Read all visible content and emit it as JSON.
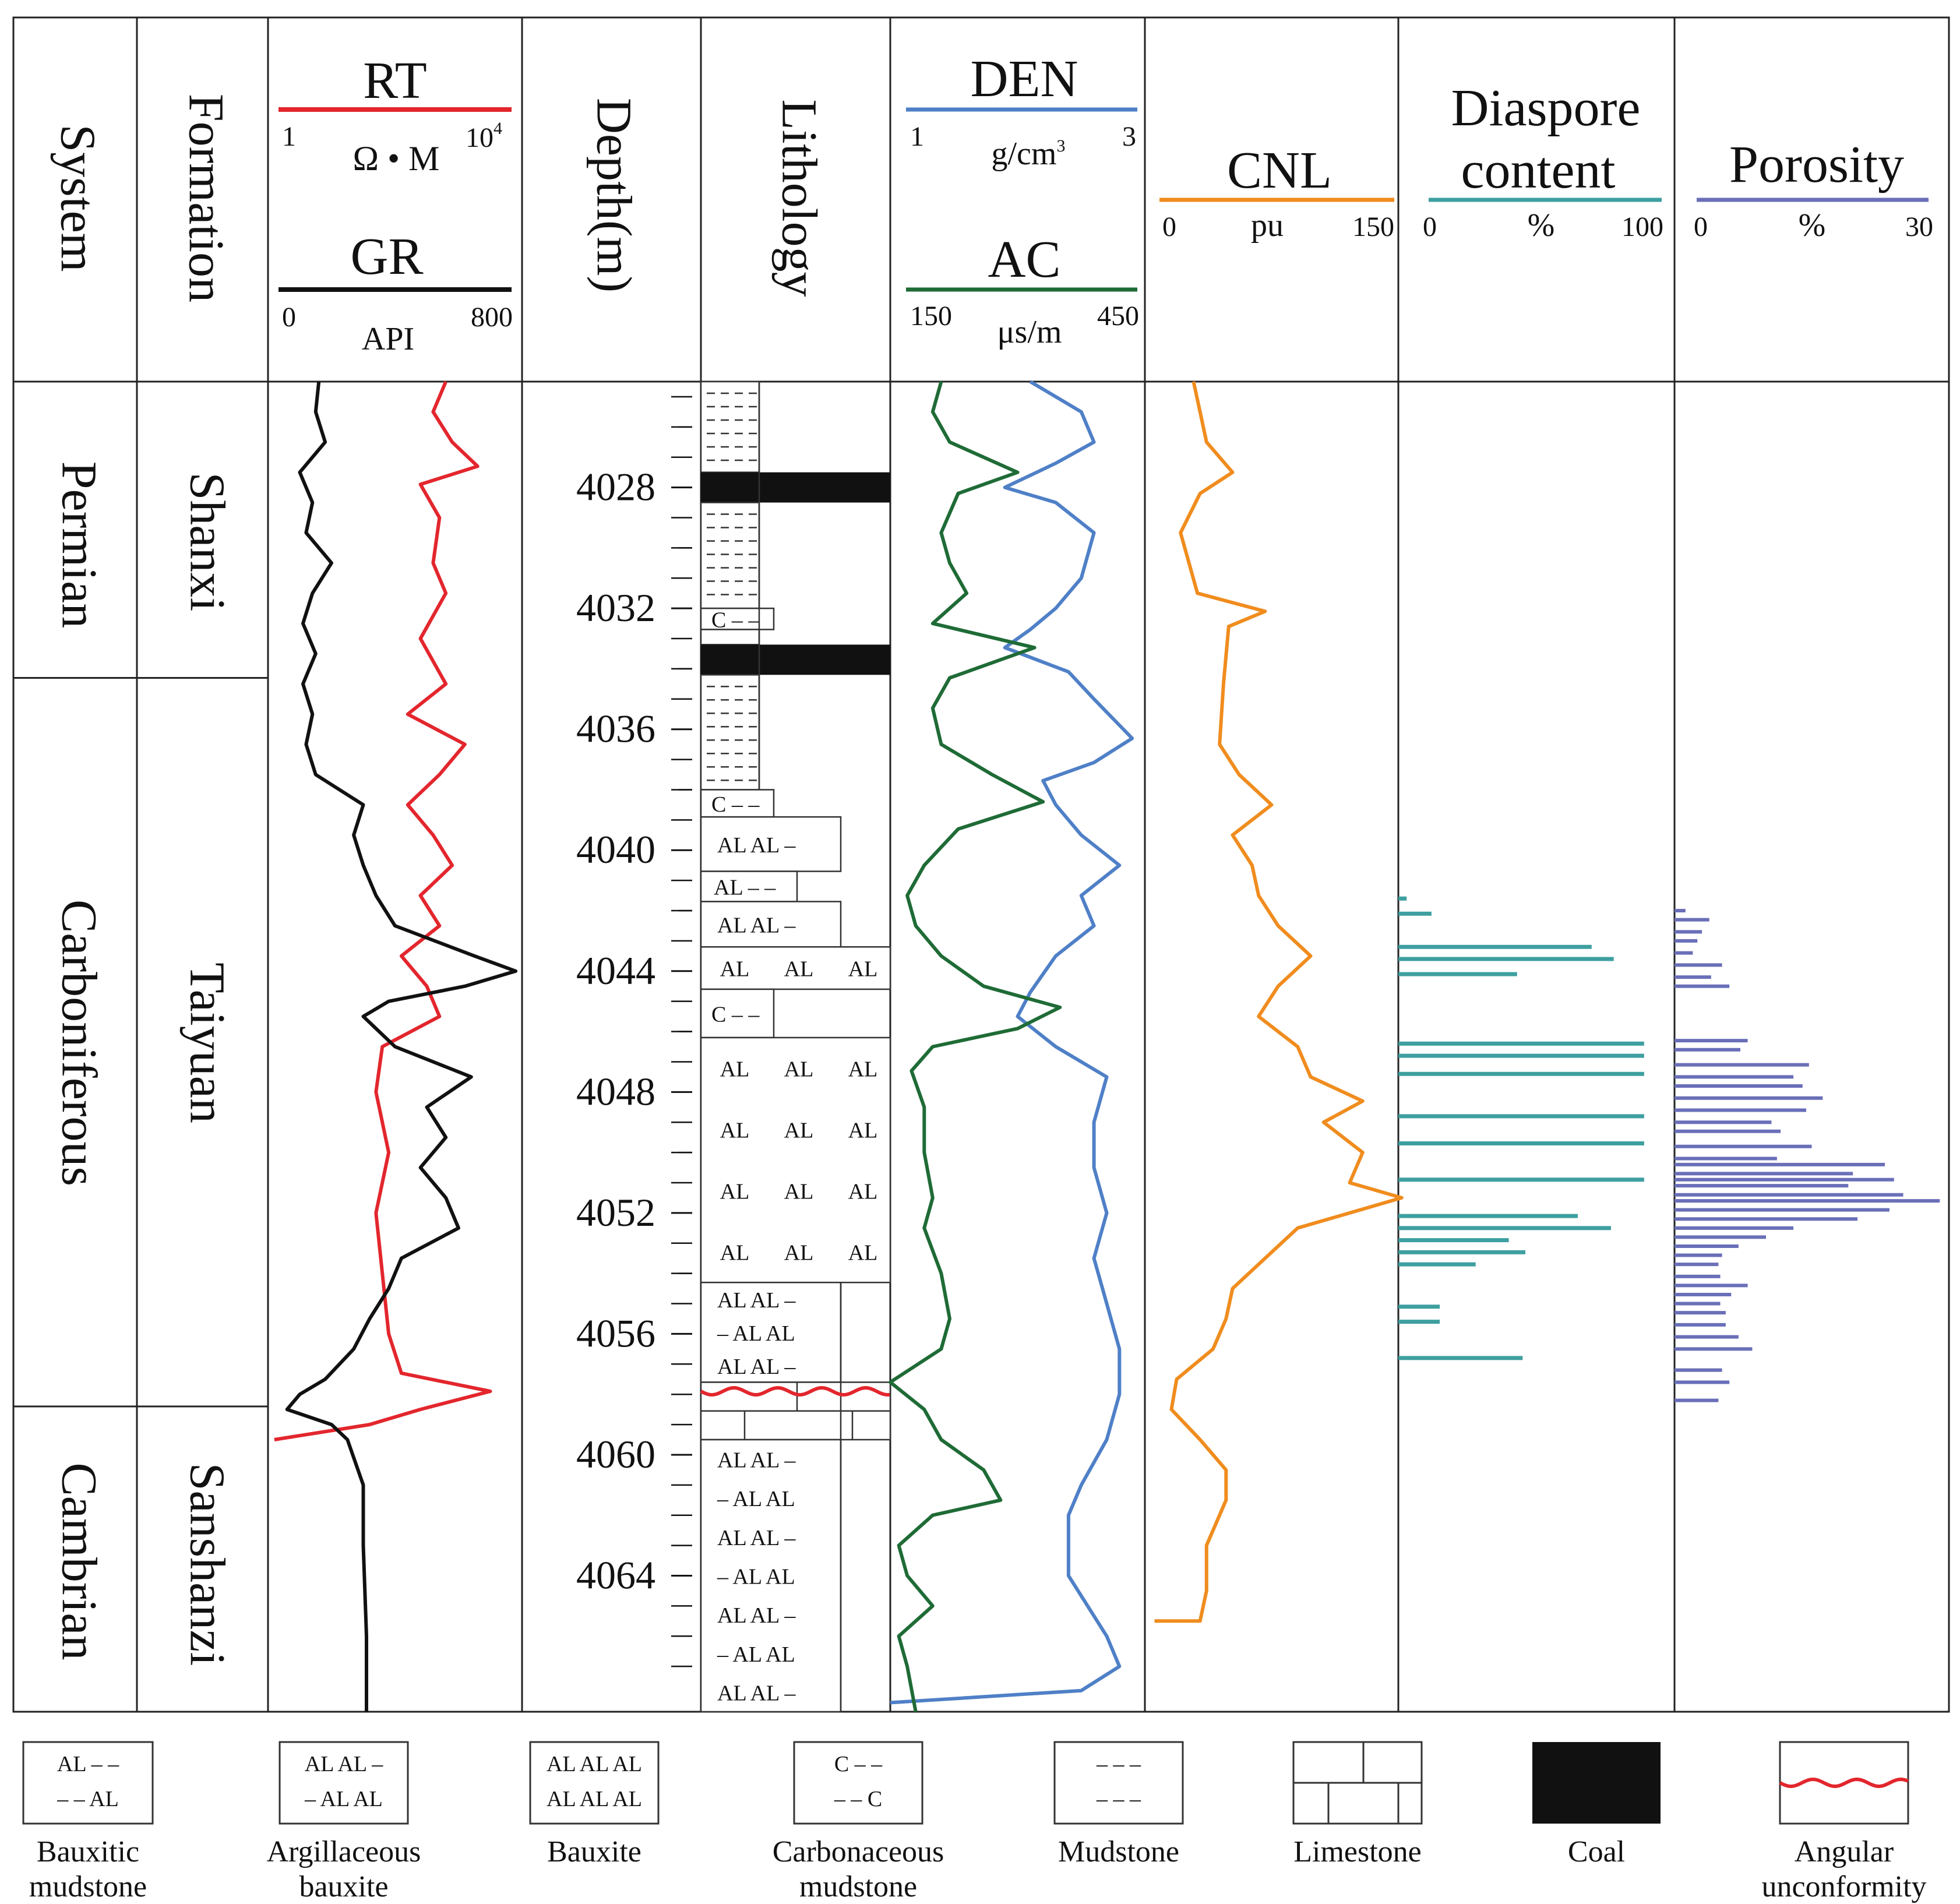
{
  "colors": {
    "rt": "#e3262d",
    "gr": "#111111",
    "den": "#4f80c7",
    "ac": "#1f6b36",
    "cnl": "#f08c1e",
    "diaspore": "#3e9fa0",
    "porosity": "#6a6fb8",
    "unconformity": "#e3262d",
    "coal": "#111111"
  },
  "columns": {
    "system": "System",
    "formation": "Formation",
    "depth": "Depth(m)",
    "lithology": "Lithology"
  },
  "curves": {
    "rt": {
      "name": "RT",
      "min": "1",
      "max": "10",
      "max_exp": "4",
      "unit": "Ω • M"
    },
    "gr": {
      "name": "GR",
      "min": "0",
      "max": "800",
      "unit": "API"
    },
    "den": {
      "name": "DEN",
      "min": "1",
      "max": "3",
      "unit": "g/cm",
      "unit_exp": "3"
    },
    "ac": {
      "name": "AC",
      "min": "150",
      "max": "450",
      "unit": "μs/m"
    },
    "cnl": {
      "name": "CNL",
      "min": "0",
      "max": "150",
      "unit": "pu"
    },
    "diaspore": {
      "name_line1": "Diaspore",
      "name_line2": "content",
      "min": "0",
      "max": "100",
      "unit": "%"
    },
    "porosity": {
      "name": "Porosity",
      "min": "0",
      "max": "30",
      "unit": "%"
    }
  },
  "systems": [
    "Permian",
    "Carboniferous",
    "Cambrian"
  ],
  "formations": [
    "Shanxi",
    "Taiyuan",
    "Sanshanzi"
  ],
  "depth_labels": [
    "4028",
    "4032",
    "4036",
    "4040",
    "4044",
    "4048",
    "4052",
    "4056",
    "4060",
    "4064"
  ],
  "lithology_marks": {
    "carbonaceous": "C – –",
    "argillaceous_a": "AL AL –",
    "argillaceous_b": "– AL AL",
    "bauxitic_mud": "AL – –",
    "bauxite_word": "AL"
  },
  "legend": [
    {
      "label_1": "Bauxitic",
      "label_2": "mudstone",
      "sym_1": "AL – –",
      "sym_2": "– – AL"
    },
    {
      "label_1": "Argillaceous",
      "label_2": "bauxite",
      "sym_1": "AL AL –",
      "sym_2": "– AL AL"
    },
    {
      "label_1": "Bauxite",
      "label_2": "",
      "sym_1": "AL AL AL",
      "sym_2": "AL AL AL"
    },
    {
      "label_1": "Carbonaceous",
      "label_2": "mudstone",
      "sym_1": "C – –",
      "sym_2": "– – C"
    },
    {
      "label_1": "Mudstone",
      "label_2": "",
      "sym_1": "– – –",
      "sym_2": "– – –"
    },
    {
      "label_1": "Limestone",
      "label_2": "",
      "sym_1": "",
      "sym_2": ""
    },
    {
      "label_1": "Coal",
      "label_2": "",
      "sym_1": "",
      "sym_2": ""
    },
    {
      "label_1": "Angular",
      "label_2": "unconformity",
      "sym_1": "",
      "sym_2": ""
    }
  ],
  "well_log": {
    "depth_range_m": [
      4024.5,
      4068.5
    ],
    "lithology_intervals": [
      {
        "top": 4024.5,
        "base": 4027.5,
        "type": "mudstone"
      },
      {
        "top": 4027.5,
        "base": 4028.5,
        "type": "coal"
      },
      {
        "top": 4028.5,
        "base": 4032.0,
        "type": "mudstone"
      },
      {
        "top": 4032.0,
        "base": 4032.7,
        "type": "carbonaceous_mudstone"
      },
      {
        "top": 4032.7,
        "base": 4033.2,
        "type": "mudstone"
      },
      {
        "top": 4033.2,
        "base": 4034.2,
        "type": "coal"
      },
      {
        "top": 4034.2,
        "base": 4038.0,
        "type": "mudstone"
      },
      {
        "top": 4038.0,
        "base": 4038.9,
        "type": "carbonaceous_mudstone"
      },
      {
        "top": 4038.9,
        "base": 4040.7,
        "type": "argillaceous_bauxite"
      },
      {
        "top": 4040.7,
        "base": 4041.7,
        "type": "bauxitic_mudstone"
      },
      {
        "top": 4041.7,
        "base": 4043.2,
        "type": "argillaceous_bauxite"
      },
      {
        "top": 4043.2,
        "base": 4044.6,
        "type": "bauxite"
      },
      {
        "top": 4044.6,
        "base": 4046.2,
        "type": "carbonaceous_mudstone"
      },
      {
        "top": 4046.2,
        "base": 4054.3,
        "type": "bauxite"
      },
      {
        "top": 4054.3,
        "base": 4057.6,
        "type": "argillaceous_bauxite"
      },
      {
        "top": 4057.6,
        "base": 4059.5,
        "type": "limestone"
      },
      {
        "top": 4059.5,
        "base": 4068.5,
        "type": "argillaceous_bauxite"
      }
    ],
    "unconformity_depth": 4057.9,
    "system_boundaries": [
      4034.3,
      4058.4
    ],
    "rt": [
      [
        4024.5,
        2.8
      ],
      [
        4025.5,
        2.6
      ],
      [
        4026.5,
        2.9
      ],
      [
        4027.3,
        3.3
      ],
      [
        4027.9,
        2.4
      ],
      [
        4029,
        2.7
      ],
      [
        4030.5,
        2.6
      ],
      [
        4031.5,
        2.8
      ],
      [
        4033,
        2.4
      ],
      [
        4034.5,
        2.8
      ],
      [
        4035.5,
        2.2
      ],
      [
        4036.5,
        3.1
      ],
      [
        4037.5,
        2.7
      ],
      [
        4038.5,
        2.2
      ],
      [
        4039.5,
        2.6
      ],
      [
        4040.5,
        2.9
      ],
      [
        4041.5,
        2.4
      ],
      [
        4042.5,
        2.7
      ],
      [
        4043.5,
        2.1
      ],
      [
        4044.5,
        2.5
      ],
      [
        4045.5,
        2.7
      ],
      [
        4046.5,
        1.8
      ],
      [
        4048,
        1.7
      ],
      [
        4050,
        1.9
      ],
      [
        4052,
        1.7
      ],
      [
        4054,
        1.8
      ],
      [
        4056,
        1.9
      ],
      [
        4057.3,
        2.1
      ],
      [
        4057.9,
        3.5
      ],
      [
        4058.5,
        2.4
      ],
      [
        4059,
        1.6
      ],
      [
        4059.5,
        0.1
      ]
    ],
    "gr": [
      [
        4024.5,
        160
      ],
      [
        4025.5,
        150
      ],
      [
        4026.5,
        180
      ],
      [
        4027.5,
        100
      ],
      [
        4028.5,
        140
      ],
      [
        4029.5,
        120
      ],
      [
        4030.5,
        200
      ],
      [
        4031.5,
        140
      ],
      [
        4032.5,
        110
      ],
      [
        4033.5,
        150
      ],
      [
        4034.5,
        110
      ],
      [
        4035.5,
        140
      ],
      [
        4036.5,
        120
      ],
      [
        4037.5,
        150
      ],
      [
        4038.5,
        300
      ],
      [
        4039.5,
        270
      ],
      [
        4040.5,
        300
      ],
      [
        4041.5,
        340
      ],
      [
        4042.5,
        400
      ],
      [
        4043.5,
        650
      ],
      [
        4044,
        780
      ],
      [
        4044.5,
        620
      ],
      [
        4045,
        380
      ],
      [
        4045.5,
        300
      ],
      [
        4046.5,
        400
      ],
      [
        4047.5,
        640
      ],
      [
        4048.5,
        500
      ],
      [
        4049.5,
        560
      ],
      [
        4050.5,
        480
      ],
      [
        4051.5,
        560
      ],
      [
        4052.5,
        600
      ],
      [
        4053.5,
        420
      ],
      [
        4054.5,
        380
      ],
      [
        4055.5,
        320
      ],
      [
        4056.5,
        270
      ],
      [
        4057.5,
        180
      ],
      [
        4058,
        100
      ],
      [
        4058.5,
        60
      ],
      [
        4059,
        200
      ],
      [
        4059.5,
        250
      ],
      [
        4061,
        300
      ],
      [
        4063,
        300
      ],
      [
        4066,
        310
      ],
      [
        4068.5,
        310
      ]
    ],
    "den": [
      [
        4024.5,
        2.1
      ],
      [
        4025.5,
        2.5
      ],
      [
        4026.5,
        2.6
      ],
      [
        4027.2,
        2.3
      ],
      [
        4028,
        1.9
      ],
      [
        4028.5,
        2.3
      ],
      [
        4029.5,
        2.6
      ],
      [
        4031,
        2.5
      ],
      [
        4032,
        2.3
      ],
      [
        4032.7,
        2.1
      ],
      [
        4033.3,
        1.9
      ],
      [
        4034.1,
        2.4
      ],
      [
        4035,
        2.6
      ],
      [
        4036.3,
        2.9
      ],
      [
        4037.1,
        2.6
      ],
      [
        4037.7,
        2.2
      ],
      [
        4038.5,
        2.3
      ],
      [
        4039.5,
        2.5
      ],
      [
        4040.5,
        2.8
      ],
      [
        4041.5,
        2.5
      ],
      [
        4042.5,
        2.6
      ],
      [
        4043.5,
        2.3
      ],
      [
        4044.7,
        2.1
      ],
      [
        4045.5,
        2.0
      ],
      [
        4046.5,
        2.3
      ],
      [
        4047.5,
        2.7
      ],
      [
        4049,
        2.6
      ],
      [
        4050.5,
        2.6
      ],
      [
        4052,
        2.7
      ],
      [
        4053.5,
        2.6
      ],
      [
        4055,
        2.7
      ],
      [
        4056.5,
        2.8
      ],
      [
        4058,
        2.8
      ],
      [
        4059.5,
        2.7
      ],
      [
        4061,
        2.5
      ],
      [
        4062,
        2.4
      ],
      [
        4064,
        2.4
      ],
      [
        4066,
        2.7
      ],
      [
        4067,
        2.8
      ],
      [
        4067.8,
        2.5
      ],
      [
        4068.2,
        1.0
      ]
    ],
    "ac": [
      [
        4024.5,
        210
      ],
      [
        4025.5,
        200
      ],
      [
        4026.5,
        220
      ],
      [
        4027.5,
        300
      ],
      [
        4028.2,
        230
      ],
      [
        4029.5,
        210
      ],
      [
        4030.5,
        220
      ],
      [
        4031.5,
        240
      ],
      [
        4032.5,
        200
      ],
      [
        4033.3,
        320
      ],
      [
        4034.3,
        220
      ],
      [
        4035.3,
        200
      ],
      [
        4036.5,
        210
      ],
      [
        4037.5,
        270
      ],
      [
        4038.4,
        330
      ],
      [
        4039.3,
        230
      ],
      [
        4040.5,
        190
      ],
      [
        4041.5,
        170
      ],
      [
        4042.5,
        180
      ],
      [
        4043.5,
        210
      ],
      [
        4044.5,
        260
      ],
      [
        4045.2,
        350
      ],
      [
        4045.9,
        300
      ],
      [
        4046.5,
        200
      ],
      [
        4047.3,
        175
      ],
      [
        4048.5,
        190
      ],
      [
        4050,
        190
      ],
      [
        4051.5,
        200
      ],
      [
        4052.5,
        190
      ],
      [
        4054,
        210
      ],
      [
        4055.5,
        220
      ],
      [
        4056.5,
        210
      ],
      [
        4057.6,
        150
      ],
      [
        4058.5,
        190
      ],
      [
        4059.5,
        210
      ],
      [
        4060.5,
        260
      ],
      [
        4061.5,
        280
      ],
      [
        4062,
        200
      ],
      [
        4063,
        160
      ],
      [
        4064,
        170
      ],
      [
        4065,
        200
      ],
      [
        4066,
        160
      ],
      [
        4067,
        170
      ],
      [
        4068.5,
        180
      ]
    ],
    "cnl": [
      [
        4024.5,
        15
      ],
      [
        4025.5,
        20
      ],
      [
        4026.5,
        25
      ],
      [
        4027.5,
        45
      ],
      [
        4028.2,
        20
      ],
      [
        4029.5,
        5
      ],
      [
        4031.5,
        18
      ],
      [
        4032.1,
        70
      ],
      [
        4032.6,
        42
      ],
      [
        4034.5,
        38
      ],
      [
        4036.5,
        35
      ],
      [
        4037.5,
        50
      ],
      [
        4038.5,
        75
      ],
      [
        4039.5,
        45
      ],
      [
        4040.5,
        60
      ],
      [
        4041.5,
        65
      ],
      [
        4042.5,
        80
      ],
      [
        4043.5,
        105
      ],
      [
        4044.5,
        80
      ],
      [
        4045.5,
        65
      ],
      [
        4046.5,
        95
      ],
      [
        4047.5,
        105
      ],
      [
        4048.3,
        145
      ],
      [
        4049,
        115
      ],
      [
        4050,
        145
      ],
      [
        4051,
        135
      ],
      [
        4051.5,
        175
      ],
      [
        4052.5,
        95
      ],
      [
        4053.5,
        70
      ],
      [
        4054.5,
        45
      ],
      [
        4055.5,
        40
      ],
      [
        4056.5,
        30
      ],
      [
        4057.5,
        2
      ],
      [
        4058.5,
        -2
      ],
      [
        4059.5,
        20
      ],
      [
        4060.5,
        40
      ],
      [
        4061.5,
        40
      ],
      [
        4063,
        25
      ],
      [
        4064.5,
        25
      ],
      [
        4065.5,
        20
      ],
      [
        4065.5,
        -15
      ]
    ],
    "diaspore_bars": [
      [
        4041.6,
        3
      ],
      [
        4042.1,
        12
      ],
      [
        4043.2,
        70
      ],
      [
        4043.6,
        78
      ],
      [
        4044.1,
        43
      ],
      [
        4046.4,
        89
      ],
      [
        4046.8,
        89
      ],
      [
        4047.4,
        89
      ],
      [
        4048.8,
        89
      ],
      [
        4049.7,
        89
      ],
      [
        4050.9,
        89
      ],
      [
        4052.1,
        65
      ],
      [
        4052.5,
        77
      ],
      [
        4052.9,
        40
      ],
      [
        4053.3,
        46
      ],
      [
        4053.7,
        28
      ],
      [
        4055.1,
        15
      ],
      [
        4055.6,
        15
      ],
      [
        4056.8,
        45
      ]
    ],
    "porosity_bars": [
      [
        4042.0,
        1.2
      ],
      [
        4042.3,
        3.8
      ],
      [
        4042.7,
        3.0
      ],
      [
        4043.0,
        2.5
      ],
      [
        4043.4,
        2.0
      ],
      [
        4043.8,
        5.2
      ],
      [
        4044.2,
        4.0
      ],
      [
        4044.5,
        6.0
      ],
      [
        4046.3,
        8.0
      ],
      [
        4046.6,
        7.2
      ],
      [
        4047.1,
        14.7
      ],
      [
        4047.5,
        13.0
      ],
      [
        4047.8,
        14.0
      ],
      [
        4048.2,
        16.2
      ],
      [
        4048.6,
        14.4
      ],
      [
        4049.0,
        10.6
      ],
      [
        4049.3,
        11.6
      ],
      [
        4049.8,
        15.0
      ],
      [
        4050.2,
        11.2
      ],
      [
        4050.4,
        23.0
      ],
      [
        4050.7,
        19.5
      ],
      [
        4050.9,
        24.0
      ],
      [
        4051.1,
        19.0
      ],
      [
        4051.4,
        25.0
      ],
      [
        4051.6,
        29.0
      ],
      [
        4051.9,
        23.5
      ],
      [
        4052.2,
        20.0
      ],
      [
        4052.5,
        13.0
      ],
      [
        4052.8,
        10.0
      ],
      [
        4053.1,
        7.0
      ],
      [
        4053.4,
        5.2
      ],
      [
        4053.7,
        4.8
      ],
      [
        4054.1,
        5.0
      ],
      [
        4054.4,
        8.0
      ],
      [
        4054.7,
        6.2
      ],
      [
        4055.0,
        5.0
      ],
      [
        4055.3,
        5.6
      ],
      [
        4055.7,
        5.6
      ],
      [
        4056.1,
        7.0
      ],
      [
        4056.5,
        8.5
      ],
      [
        4057.2,
        5.2
      ],
      [
        4057.6,
        6.0
      ],
      [
        4058.2,
        4.8
      ]
    ]
  }
}
